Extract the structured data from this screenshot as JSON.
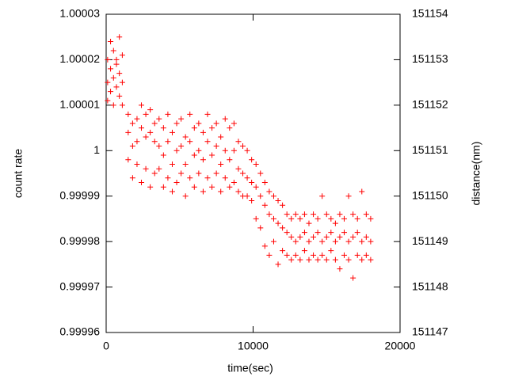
{
  "chart_data": {
    "type": "scatter",
    "xlabel": "time(sec)",
    "ylabel": "count rate",
    "y2label": "distance(nm)",
    "color": "#ff0000",
    "marker": "+",
    "xlim": [
      0,
      20000
    ],
    "xticks": [
      0,
      10000,
      20000
    ],
    "ylim": [
      0.99996,
      1.00003
    ],
    "yticks": [
      0.99996,
      0.99997,
      0.99998,
      0.99999,
      1,
      1.00001,
      1.00002,
      1.00003
    ],
    "y2lim": [
      151147,
      151154
    ],
    "y2ticks": [
      151147,
      151148,
      151149,
      151150,
      151151,
      151152,
      151153,
      151154
    ],
    "x": [
      100,
      100,
      100,
      300,
      300,
      300,
      500,
      500,
      500,
      700,
      700,
      700,
      900,
      900,
      900,
      1100,
      1100,
      1100,
      1500,
      1500,
      1500,
      1800,
      1800,
      1800,
      2100,
      2100,
      2100,
      2400,
      2400,
      2400,
      2700,
      2700,
      2700,
      3000,
      3000,
      3000,
      3300,
      3300,
      3300,
      3600,
      3600,
      3600,
      3900,
      3900,
      3900,
      4200,
      4200,
      4200,
      4500,
      4500,
      4500,
      4800,
      4800,
      4800,
      5100,
      5100,
      5100,
      5400,
      5400,
      5400,
      5700,
      5700,
      5700,
      6000,
      6000,
      6000,
      6300,
      6300,
      6300,
      6600,
      6600,
      6600,
      6900,
      6900,
      6900,
      7200,
      7200,
      7200,
      7500,
      7500,
      7500,
      7800,
      7800,
      7800,
      8100,
      8100,
      8100,
      8400,
      8400,
      8400,
      8700,
      8700,
      8700,
      9000,
      9000,
      9000,
      9300,
      9300,
      9300,
      9600,
      9600,
      9600,
      9900,
      9900,
      9900,
      10200,
      10200,
      10200,
      10500,
      10500,
      10500,
      10800,
      10800,
      10800,
      11100,
      11100,
      11100,
      11400,
      11400,
      11400,
      11700,
      11700,
      11700,
      12000,
      12000,
      12000,
      12300,
      12300,
      12300,
      12600,
      12600,
      12600,
      12900,
      12900,
      12900,
      13200,
      13200,
      13200,
      13500,
      13500,
      13500,
      13800,
      13800,
      13800,
      14100,
      14100,
      14100,
      14400,
      14400,
      14400,
      14700,
      14700,
      14700,
      15000,
      15000,
      15000,
      15300,
      15300,
      15300,
      15600,
      15600,
      15600,
      15900,
      15900,
      15900,
      16200,
      16200,
      16200,
      16500,
      16500,
      16500,
      16800,
      16800,
      16800,
      17100,
      17100,
      17100,
      17400,
      17400,
      17400,
      17700,
      17700,
      17700,
      18000,
      18000,
      18000
    ],
    "values": [
      1.00002,
      1.000015,
      1.000011,
      1.000024,
      1.000018,
      1.000013,
      1.000022,
      1.000016,
      1.00001,
      1.00002,
      1.000014,
      1.000019,
      1.000025,
      1.000017,
      1.000012,
      1.000021,
      1.000015,
      1.00001,
      1.000008,
      1.000004,
      0.999998,
      1.000006,
      1.000001,
      0.999994,
      1.000007,
      1.000002,
      0.999997,
      1.00001,
      1.000005,
      0.999993,
      1.000003,
      0.999996,
      1.000008,
      1.000009,
      1.000004,
      0.999992,
      1.000002,
      0.999995,
      1.000006,
      1.000007,
      1.000001,
      0.999996,
      1.000005,
      0.999999,
      0.999992,
      1.000008,
      1.000002,
      0.999994,
      1.000004,
      0.999997,
      0.999991,
      1.000006,
      1,
      0.999993,
      1.000007,
      1.000001,
      0.999995,
      1.000003,
      0.999997,
      0.99999,
      1.000008,
      1.000002,
      0.999994,
      1.000005,
      0.999999,
      0.999992,
      1.000006,
      1,
      0.999995,
      1.000004,
      0.999998,
      0.999991,
      1.000008,
      1.000002,
      0.999994,
      1.000005,
      0.999999,
      0.999992,
      1.000006,
      1.000001,
      0.999995,
      1.000003,
      0.999997,
      0.999991,
      1.000007,
      1,
      0.999994,
      1.000005,
      0.999998,
      0.999992,
      1.000006,
      1,
      0.999993,
      1.000002,
      0.999996,
      0.999991,
      1.000001,
      0.999995,
      0.99999,
      1,
      0.999994,
      0.99999,
      0.999998,
      0.999993,
      0.999989,
      0.999997,
      0.999992,
      0.999985,
      0.999995,
      0.99999,
      0.999983,
      0.999993,
      0.999988,
      0.999979,
      0.999991,
      0.999986,
      0.999977,
      0.99999,
      0.999985,
      0.99998,
      0.999989,
      0.999984,
      0.999975,
      0.999988,
      0.999983,
      0.999978,
      0.999986,
      0.999982,
      0.999977,
      0.999985,
      0.999981,
      0.999976,
      0.999986,
      0.99998,
      0.999977,
      0.999985,
      0.999981,
      0.999976,
      0.999986,
      0.999982,
      0.999978,
      0.999984,
      0.99998,
      0.999976,
      0.999986,
      0.999981,
      0.999977,
      0.999985,
      0.999982,
      0.999976,
      0.99999,
      0.99998,
      0.999977,
      0.999986,
      0.999981,
      0.999976,
      0.999985,
      0.999982,
      0.999978,
      0.999984,
      0.99998,
      0.999976,
      0.999986,
      0.999981,
      0.999974,
      0.999985,
      0.999982,
      0.999977,
      0.99999,
      0.99998,
      0.999976,
      0.999986,
      0.999981,
      0.999972,
      0.999985,
      0.999982,
      0.999977,
      0.999991,
      0.99998,
      0.999976,
      0.999986,
      0.999981,
      0.999977,
      0.999985,
      0.99998,
      0.999976
    ]
  }
}
